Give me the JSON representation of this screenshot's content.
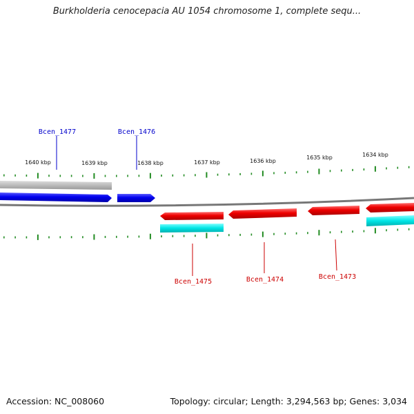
{
  "title": "Burkholderia cenocepacia AU 1054 chromosome 1, complete sequ...",
  "footer": {
    "accession": "Accession: NC_008060",
    "summary": "Topology: circular; Length: 3,294,563 bp; Genes: 3,034"
  },
  "colors": {
    "forward_gene": "#0000ee",
    "reverse_gene": "#ee0000",
    "forward_cds_track": "#bbbbbb",
    "reverse_cds_track": "#00e5e5",
    "tick": "#228b22",
    "backbone": "#777777",
    "forward_label": "#0000cc",
    "reverse_label": "#cc0000"
  },
  "kbp_labels": [
    "1640 kbp",
    "1639 kbp",
    "1638 kbp",
    "1637 kbp",
    "1636 kbp",
    "1635 kbp",
    "1634 kbp"
  ],
  "genes": [
    {
      "name": "Bcen_1477",
      "strand": "forward"
    },
    {
      "name": "Bcen_1476",
      "strand": "forward"
    },
    {
      "name": "Bcen_1475",
      "strand": "reverse"
    },
    {
      "name": "Bcen_1474",
      "strand": "reverse"
    },
    {
      "name": "Bcen_1473",
      "strand": "reverse"
    }
  ]
}
